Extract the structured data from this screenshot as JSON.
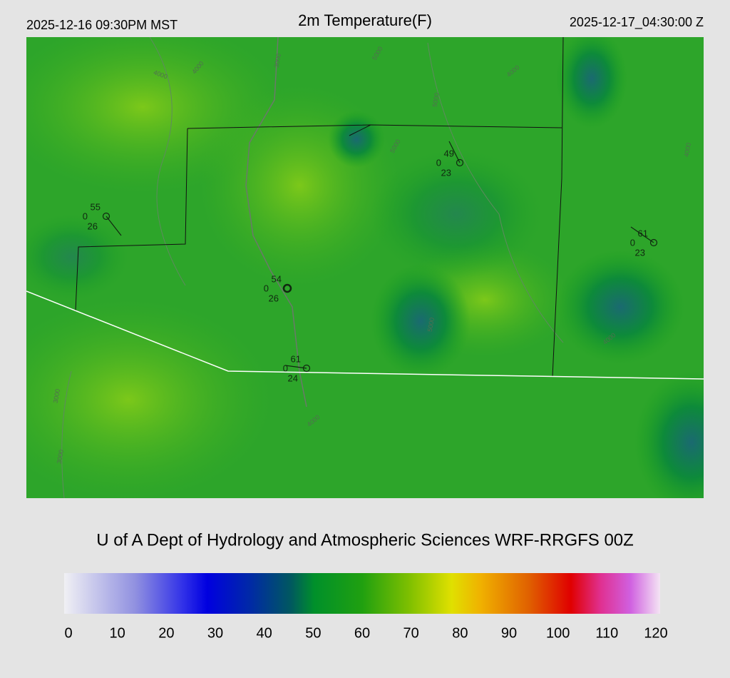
{
  "header": {
    "local_time": "2025-12-16 09:30PM MST",
    "title": "2m Temperature(F)",
    "utc_time": "2025-12-17_04:30:00 Z"
  },
  "stations": [
    {
      "temperature": 55,
      "wind": 0,
      "dewpoint": 26
    },
    {
      "temperature": 49,
      "wind": 0,
      "dewpoint": 23
    },
    {
      "temperature": 61,
      "wind": 0,
      "dewpoint": 23
    },
    {
      "temperature": 54,
      "wind": 0,
      "dewpoint": 26
    },
    {
      "temperature": 61,
      "wind": 0,
      "dewpoint": 24
    }
  ],
  "contour_labels": [
    "3000",
    "4000",
    "4000",
    "5000",
    "5000",
    "4000",
    "5000",
    "4000",
    "3000",
    "3000",
    "4000",
    "5000",
    "4000"
  ],
  "credit": "U of A Dept of Hydrology and Atmospheric Sciences WRF-RRGFS 00Z",
  "colorbar": {
    "ticks": [
      0,
      10,
      20,
      30,
      40,
      50,
      60,
      70,
      80,
      90,
      100,
      110,
      120
    ]
  }
}
